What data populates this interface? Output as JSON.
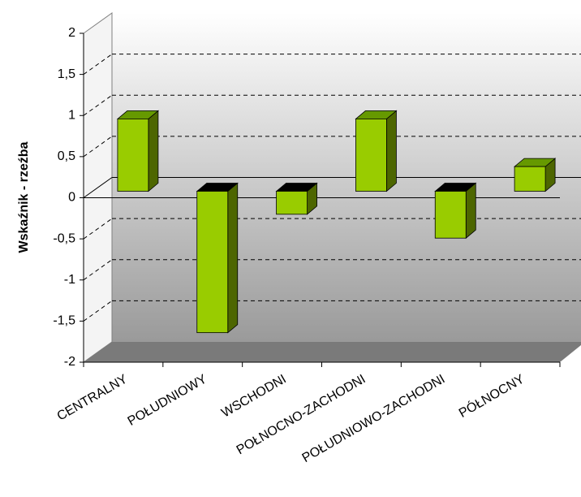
{
  "chart_data": {
    "type": "bar3d",
    "y_label": "Wskaźnik - rzeźba",
    "categories": [
      "CENTRALNY",
      "POŁUDNIOWY",
      "WSCHODNI",
      "POŁNOCNO-ZACHODNI",
      "POŁUDNIOWO-ZACHODNI",
      "PÓŁNOCNY"
    ],
    "values": [
      0.88,
      -1.72,
      -0.28,
      0.88,
      -0.57,
      0.3
    ],
    "color": "#99cc00",
    "ylim": [
      -2,
      2
    ],
    "yticks": [
      -2,
      {
        "value": -1.5,
        "label": "-1,5"
      },
      -1,
      {
        "value": -0.5,
        "label": "-0,5"
      },
      0,
      {
        "value": 0.5,
        "label": "0,5"
      },
      1,
      {
        "value": 1.5,
        "label": "1,5"
      },
      2
    ],
    "grid": true
  }
}
